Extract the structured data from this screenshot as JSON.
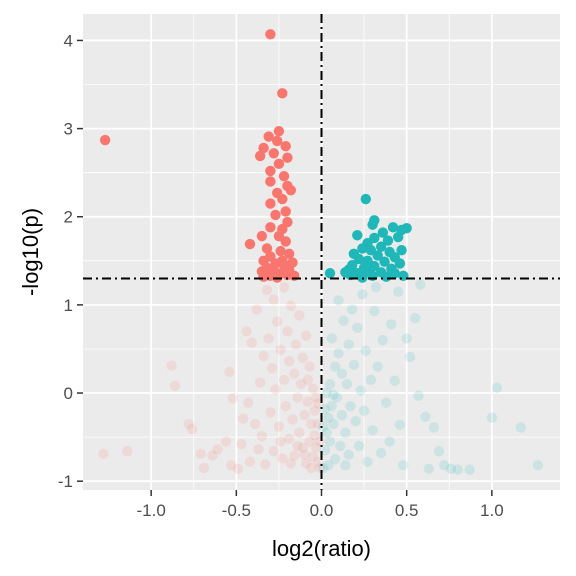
{
  "chart_data": {
    "type": "scatter",
    "xlabel": "log2(ratio)",
    "ylabel": "-log10(p)",
    "xlim": [
      -1.4,
      1.4
    ],
    "ylim": [
      -1.1,
      4.3
    ],
    "x_ticks": [
      -1.0,
      -0.5,
      0.0,
      0.5,
      1.0
    ],
    "x_tick_labels": [
      "-1.0",
      "-0.5",
      "0.0",
      "0.5",
      "1.0"
    ],
    "y_ticks": [
      -1,
      0,
      1,
      2,
      3,
      4
    ],
    "y_tick_labels": [
      "-1",
      "0",
      "1",
      "2",
      "3",
      "4"
    ],
    "grid": true,
    "legend": "none",
    "threshold_lines": {
      "x": 0.0,
      "y": 1.3,
      "style": "dash-dot",
      "color": "#000000"
    },
    "colors": {
      "negative": "#F8766D",
      "positive": "#1FB7B7",
      "panel_bg": "#EBEBEB",
      "grid": "#FFFFFF"
    },
    "significant_points": {
      "negative": [
        [
          -0.3,
          4.07
        ],
        [
          -0.23,
          3.4
        ],
        [
          -1.27,
          2.87
        ],
        [
          -0.25,
          2.97
        ],
        [
          -0.31,
          2.91
        ],
        [
          -0.26,
          2.86
        ],
        [
          -0.21,
          2.8
        ],
        [
          -0.34,
          2.78
        ],
        [
          -0.2,
          2.67
        ],
        [
          -0.28,
          2.72
        ],
        [
          -0.36,
          2.69
        ],
        [
          -0.25,
          2.6
        ],
        [
          -0.3,
          2.52
        ],
        [
          -0.22,
          2.46
        ],
        [
          -0.3,
          2.4
        ],
        [
          -0.2,
          2.35
        ],
        [
          -0.26,
          2.27
        ],
        [
          -0.18,
          2.3
        ],
        [
          -0.23,
          2.2
        ],
        [
          -0.3,
          2.15
        ],
        [
          -0.21,
          2.06
        ],
        [
          -0.27,
          2.02
        ],
        [
          -0.2,
          1.94
        ],
        [
          -0.23,
          1.86
        ],
        [
          -0.3,
          1.88
        ],
        [
          -0.25,
          1.78
        ],
        [
          -0.21,
          1.72
        ],
        [
          -0.35,
          1.78
        ],
        [
          -0.42,
          1.69
        ],
        [
          -0.32,
          1.64
        ],
        [
          -0.24,
          1.61
        ],
        [
          -0.19,
          1.58
        ],
        [
          -0.3,
          1.55
        ],
        [
          -0.34,
          1.5
        ],
        [
          -0.27,
          1.47
        ],
        [
          -0.22,
          1.45
        ],
        [
          -0.17,
          1.48
        ],
        [
          -0.32,
          1.42
        ],
        [
          -0.28,
          1.38
        ],
        [
          -0.24,
          1.36
        ],
        [
          -0.35,
          1.38
        ],
        [
          -0.2,
          1.34
        ],
        [
          -0.3,
          1.33
        ],
        [
          -0.16,
          1.33
        ],
        [
          -0.26,
          1.31
        ],
        [
          -0.34,
          1.32
        ],
        [
          -0.19,
          1.4
        ],
        [
          -0.23,
          1.5
        ]
      ],
      "positive": [
        [
          0.26,
          2.2
        ],
        [
          0.31,
          1.96
        ],
        [
          0.3,
          1.91
        ],
        [
          0.42,
          1.88
        ],
        [
          0.5,
          1.87
        ],
        [
          0.47,
          1.85
        ],
        [
          0.36,
          1.82
        ],
        [
          0.21,
          1.79
        ],
        [
          0.45,
          1.77
        ],
        [
          0.31,
          1.76
        ],
        [
          0.39,
          1.73
        ],
        [
          0.27,
          1.7
        ],
        [
          0.35,
          1.66
        ],
        [
          0.24,
          1.64
        ],
        [
          0.29,
          1.62
        ],
        [
          0.47,
          1.62
        ],
        [
          0.4,
          1.6
        ],
        [
          0.19,
          1.58
        ],
        [
          0.33,
          1.56
        ],
        [
          0.43,
          1.54
        ],
        [
          0.22,
          1.52
        ],
        [
          0.27,
          1.5
        ],
        [
          0.37,
          1.49
        ],
        [
          0.46,
          1.47
        ],
        [
          0.18,
          1.45
        ],
        [
          0.31,
          1.44
        ],
        [
          0.25,
          1.42
        ],
        [
          0.41,
          1.41
        ],
        [
          0.16,
          1.4
        ],
        [
          0.28,
          1.38
        ],
        [
          0.35,
          1.37
        ],
        [
          0.21,
          1.36
        ],
        [
          0.43,
          1.36
        ],
        [
          0.05,
          1.36
        ],
        [
          0.17,
          1.34
        ],
        [
          0.3,
          1.33
        ],
        [
          0.38,
          1.32
        ],
        [
          0.24,
          1.31
        ],
        [
          0.48,
          1.33
        ],
        [
          0.14,
          1.37
        ]
      ]
    },
    "nonsignificant_points": {
      "negative": [
        [
          -1.28,
          -0.69
        ],
        [
          -1.14,
          -0.66
        ],
        [
          -0.88,
          0.31
        ],
        [
          -0.86,
          0.08
        ],
        [
          -0.78,
          -0.35
        ],
        [
          -0.76,
          -0.41
        ],
        [
          -0.71,
          -0.69
        ],
        [
          -0.69,
          -0.85
        ],
        [
          -0.64,
          -0.71
        ],
        [
          -0.61,
          -0.64
        ],
        [
          -0.56,
          -0.55
        ],
        [
          -0.54,
          0.24
        ],
        [
          -0.53,
          -0.82
        ],
        [
          -0.52,
          -0.06
        ],
        [
          -0.49,
          -0.86
        ],
        [
          -0.47,
          -0.58
        ],
        [
          -0.46,
          -0.29
        ],
        [
          -0.44,
          0.7
        ],
        [
          -0.43,
          -0.11
        ],
        [
          -0.42,
          -0.78
        ],
        [
          -0.41,
          0.57
        ],
        [
          -0.39,
          -0.35
        ],
        [
          -0.38,
          0.95
        ],
        [
          -0.37,
          -0.64
        ],
        [
          -0.36,
          0.12
        ],
        [
          -0.35,
          -0.49
        ],
        [
          -0.34,
          0.42
        ],
        [
          -0.33,
          -0.81
        ],
        [
          -0.32,
          1.17
        ],
        [
          -0.31,
          0.62
        ],
        [
          -0.3,
          -0.22
        ],
        [
          -0.29,
          0.28
        ],
        [
          -0.28,
          -0.66
        ],
        [
          -0.28,
          1.06
        ],
        [
          -0.27,
          0.04
        ],
        [
          -0.26,
          0.81
        ],
        [
          -0.25,
          -0.38
        ],
        [
          -0.24,
          0.49
        ],
        [
          -0.23,
          -0.74
        ],
        [
          -0.22,
          1.2
        ],
        [
          -0.22,
          0.15
        ],
        [
          -0.21,
          -0.15
        ],
        [
          -0.2,
          0.7
        ],
        [
          -0.19,
          -0.52
        ],
        [
          -0.19,
          0.36
        ],
        [
          -0.18,
          0.99
        ],
        [
          -0.17,
          -0.3
        ],
        [
          -0.16,
          0.22
        ],
        [
          -0.16,
          -0.71
        ],
        [
          -0.15,
          0.55
        ],
        [
          -0.14,
          -0.05
        ],
        [
          -0.13,
          -0.45
        ],
        [
          -0.13,
          0.88
        ],
        [
          -0.12,
          0.1
        ],
        [
          -0.11,
          -0.62
        ],
        [
          -0.11,
          0.4
        ],
        [
          -0.1,
          -0.25
        ],
        [
          -0.09,
          0.65
        ],
        [
          -0.09,
          -0.8
        ],
        [
          -0.08,
          -0.1
        ],
        [
          -0.07,
          0.3
        ],
        [
          -0.07,
          -0.55
        ],
        [
          -0.06,
          -0.35
        ],
        [
          -0.05,
          0.05
        ],
        [
          -0.05,
          -0.72
        ],
        [
          -0.04,
          -0.2
        ],
        [
          -0.04,
          -0.48
        ],
        [
          -0.03,
          -0.62
        ],
        [
          -0.03,
          -0.05
        ],
        [
          -0.02,
          -0.78
        ],
        [
          -0.02,
          -0.35
        ],
        [
          -0.01,
          -0.55
        ],
        [
          -0.01,
          -0.85
        ],
        [
          -0.06,
          -0.85
        ],
        [
          -0.1,
          -0.7
        ],
        [
          -0.14,
          -0.6
        ],
        [
          -0.18,
          -0.8
        ],
        [
          -0.24,
          -0.55
        ],
        [
          -0.02,
          -0.12
        ],
        [
          -0.08,
          0.15
        ]
      ],
      "positive": [
        [
          1.27,
          -0.82
        ],
        [
          1.17,
          -0.39
        ],
        [
          1.03,
          0.06
        ],
        [
          1.0,
          -0.28
        ],
        [
          0.87,
          -0.87
        ],
        [
          0.8,
          -0.87
        ],
        [
          0.76,
          -0.86
        ],
        [
          0.72,
          -0.82
        ],
        [
          0.69,
          -0.66
        ],
        [
          0.66,
          -0.39
        ],
        [
          0.63,
          -0.86
        ],
        [
          0.61,
          -0.27
        ],
        [
          0.57,
          -0.03
        ],
        [
          0.52,
          0.41
        ],
        [
          0.5,
          0.62
        ],
        [
          0.48,
          -0.82
        ],
        [
          0.46,
          -0.36
        ],
        [
          0.43,
          0.14
        ],
        [
          0.41,
          0.78
        ],
        [
          0.4,
          -0.55
        ],
        [
          0.38,
          -0.11
        ],
        [
          0.36,
          0.6
        ],
        [
          0.35,
          -0.68
        ],
        [
          0.33,
          0.3
        ],
        [
          0.31,
          0.93
        ],
        [
          0.3,
          -0.42
        ],
        [
          0.29,
          0.15
        ],
        [
          0.27,
          -0.78
        ],
        [
          0.26,
          0.48
        ],
        [
          0.25,
          -0.2
        ],
        [
          0.24,
          1.12
        ],
        [
          0.23,
          0.03
        ],
        [
          0.22,
          -0.6
        ],
        [
          0.21,
          0.74
        ],
        [
          0.2,
          -0.32
        ],
        [
          0.19,
          0.32
        ],
        [
          0.18,
          0.95
        ],
        [
          0.17,
          -0.15
        ],
        [
          0.16,
          -0.7
        ],
        [
          0.16,
          0.55
        ],
        [
          0.15,
          0.1
        ],
        [
          0.14,
          -0.45
        ],
        [
          0.13,
          0.82
        ],
        [
          0.12,
          0.22
        ],
        [
          0.12,
          -0.25
        ],
        [
          0.11,
          -0.6
        ],
        [
          0.1,
          0.45
        ],
        [
          0.1,
          1.05
        ],
        [
          0.09,
          -0.05
        ],
        [
          0.08,
          -0.75
        ],
        [
          0.08,
          0.3
        ],
        [
          0.07,
          -0.35
        ],
        [
          0.06,
          0.62
        ],
        [
          0.06,
          -0.15
        ],
        [
          0.05,
          -0.55
        ],
        [
          0.05,
          0.1
        ],
        [
          0.04,
          -0.28
        ],
        [
          0.04,
          -0.82
        ],
        [
          0.03,
          -0.45
        ],
        [
          0.03,
          0.0
        ],
        [
          0.02,
          -0.65
        ],
        [
          0.02,
          -0.18
        ],
        [
          0.01,
          -0.38
        ],
        [
          0.01,
          -0.85
        ],
        [
          0.58,
          1.23
        ],
        [
          0.45,
          1.15
        ],
        [
          0.32,
          1.2
        ],
        [
          0.55,
          0.85
        ],
        [
          0.07,
          -0.02
        ],
        [
          0.14,
          -0.82
        ]
      ]
    }
  }
}
